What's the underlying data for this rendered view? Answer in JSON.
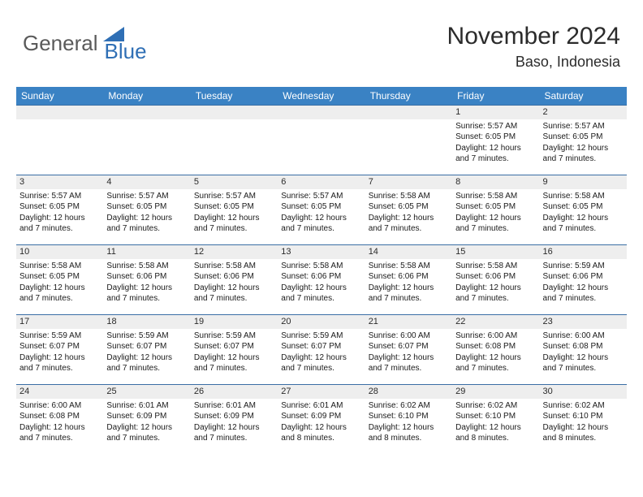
{
  "logo": {
    "general": "General",
    "blue": "Blue"
  },
  "title": {
    "month": "November 2024",
    "location": "Baso, Indonesia"
  },
  "colors": {
    "header_bg": "#3a82c4",
    "header_fg": "#ffffff",
    "daynum_bg": "#eeeeee",
    "row_border": "#3a6ea5",
    "logo_blue": "#2f6fb5",
    "logo_gray": "#5a5a5a"
  },
  "dayHeaders": [
    "Sunday",
    "Monday",
    "Tuesday",
    "Wednesday",
    "Thursday",
    "Friday",
    "Saturday"
  ],
  "weeks": [
    [
      null,
      null,
      null,
      null,
      null,
      {
        "n": "1",
        "sr": "5:57 AM",
        "ss": "6:05 PM",
        "d1": "12 hours",
        "d2": "7 minutes"
      },
      {
        "n": "2",
        "sr": "5:57 AM",
        "ss": "6:05 PM",
        "d1": "12 hours",
        "d2": "7 minutes"
      }
    ],
    [
      {
        "n": "3",
        "sr": "5:57 AM",
        "ss": "6:05 PM",
        "d1": "12 hours",
        "d2": "7 minutes"
      },
      {
        "n": "4",
        "sr": "5:57 AM",
        "ss": "6:05 PM",
        "d1": "12 hours",
        "d2": "7 minutes"
      },
      {
        "n": "5",
        "sr": "5:57 AM",
        "ss": "6:05 PM",
        "d1": "12 hours",
        "d2": "7 minutes"
      },
      {
        "n": "6",
        "sr": "5:57 AM",
        "ss": "6:05 PM",
        "d1": "12 hours",
        "d2": "7 minutes"
      },
      {
        "n": "7",
        "sr": "5:58 AM",
        "ss": "6:05 PM",
        "d1": "12 hours",
        "d2": "7 minutes"
      },
      {
        "n": "8",
        "sr": "5:58 AM",
        "ss": "6:05 PM",
        "d1": "12 hours",
        "d2": "7 minutes"
      },
      {
        "n": "9",
        "sr": "5:58 AM",
        "ss": "6:05 PM",
        "d1": "12 hours",
        "d2": "7 minutes"
      }
    ],
    [
      {
        "n": "10",
        "sr": "5:58 AM",
        "ss": "6:05 PM",
        "d1": "12 hours",
        "d2": "7 minutes"
      },
      {
        "n": "11",
        "sr": "5:58 AM",
        "ss": "6:06 PM",
        "d1": "12 hours",
        "d2": "7 minutes"
      },
      {
        "n": "12",
        "sr": "5:58 AM",
        "ss": "6:06 PM",
        "d1": "12 hours",
        "d2": "7 minutes"
      },
      {
        "n": "13",
        "sr": "5:58 AM",
        "ss": "6:06 PM",
        "d1": "12 hours",
        "d2": "7 minutes"
      },
      {
        "n": "14",
        "sr": "5:58 AM",
        "ss": "6:06 PM",
        "d1": "12 hours",
        "d2": "7 minutes"
      },
      {
        "n": "15",
        "sr": "5:58 AM",
        "ss": "6:06 PM",
        "d1": "12 hours",
        "d2": "7 minutes"
      },
      {
        "n": "16",
        "sr": "5:59 AM",
        "ss": "6:06 PM",
        "d1": "12 hours",
        "d2": "7 minutes"
      }
    ],
    [
      {
        "n": "17",
        "sr": "5:59 AM",
        "ss": "6:07 PM",
        "d1": "12 hours",
        "d2": "7 minutes"
      },
      {
        "n": "18",
        "sr": "5:59 AM",
        "ss": "6:07 PM",
        "d1": "12 hours",
        "d2": "7 minutes"
      },
      {
        "n": "19",
        "sr": "5:59 AM",
        "ss": "6:07 PM",
        "d1": "12 hours",
        "d2": "7 minutes"
      },
      {
        "n": "20",
        "sr": "5:59 AM",
        "ss": "6:07 PM",
        "d1": "12 hours",
        "d2": "7 minutes"
      },
      {
        "n": "21",
        "sr": "6:00 AM",
        "ss": "6:07 PM",
        "d1": "12 hours",
        "d2": "7 minutes"
      },
      {
        "n": "22",
        "sr": "6:00 AM",
        "ss": "6:08 PM",
        "d1": "12 hours",
        "d2": "7 minutes"
      },
      {
        "n": "23",
        "sr": "6:00 AM",
        "ss": "6:08 PM",
        "d1": "12 hours",
        "d2": "7 minutes"
      }
    ],
    [
      {
        "n": "24",
        "sr": "6:00 AM",
        "ss": "6:08 PM",
        "d1": "12 hours",
        "d2": "7 minutes"
      },
      {
        "n": "25",
        "sr": "6:01 AM",
        "ss": "6:09 PM",
        "d1": "12 hours",
        "d2": "7 minutes"
      },
      {
        "n": "26",
        "sr": "6:01 AM",
        "ss": "6:09 PM",
        "d1": "12 hours",
        "d2": "7 minutes"
      },
      {
        "n": "27",
        "sr": "6:01 AM",
        "ss": "6:09 PM",
        "d1": "12 hours",
        "d2": "8 minutes"
      },
      {
        "n": "28",
        "sr": "6:02 AM",
        "ss": "6:10 PM",
        "d1": "12 hours",
        "d2": "8 minutes"
      },
      {
        "n": "29",
        "sr": "6:02 AM",
        "ss": "6:10 PM",
        "d1": "12 hours",
        "d2": "8 minutes"
      },
      {
        "n": "30",
        "sr": "6:02 AM",
        "ss": "6:10 PM",
        "d1": "12 hours",
        "d2": "8 minutes"
      }
    ]
  ],
  "labels": {
    "sunrise": "Sunrise:",
    "sunset": "Sunset:",
    "daylight": "Daylight:",
    "and": "and"
  }
}
